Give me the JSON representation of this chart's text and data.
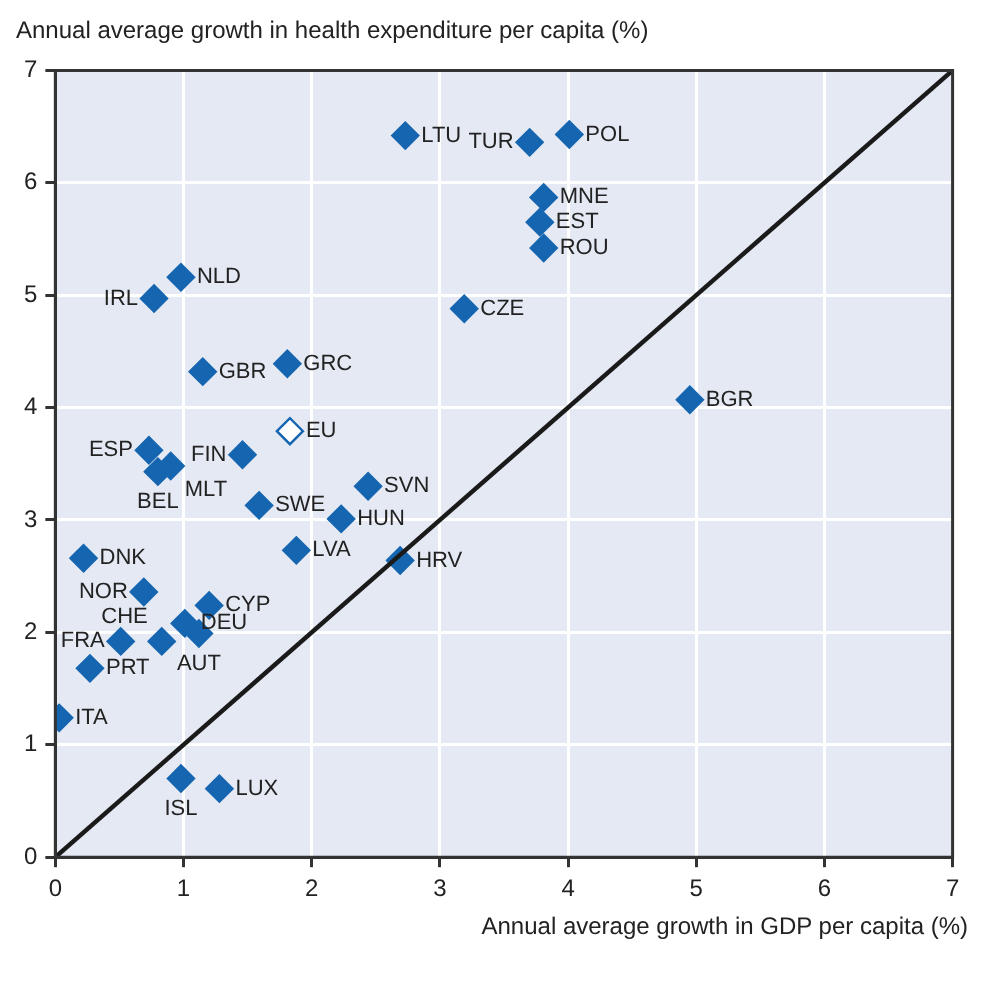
{
  "chart_data": {
    "type": "scatter",
    "ylabel": "Annual average growth in health expenditure per capita (%)",
    "xlabel": "Annual average growth in GDP per capita (%)",
    "xlim": [
      0,
      7
    ],
    "ylim": [
      0,
      7
    ],
    "xticks": [
      0,
      1,
      2,
      3,
      4,
      5,
      6,
      7
    ],
    "yticks": [
      0,
      1,
      2,
      3,
      4,
      5,
      6,
      7
    ],
    "grid": true,
    "legend": false,
    "marker": "diamond",
    "series": [
      {
        "type": "line",
        "color": "#1a1a1a",
        "marker": "none",
        "line_style": "solid",
        "x": [
          0,
          7
        ],
        "values": [
          0,
          7
        ]
      },
      {
        "color": "#1565b0",
        "x": [
          2.73,
          3.7,
          4.01,
          3.81,
          3.78,
          3.81,
          3.19,
          4.95,
          0.98,
          0.77,
          1.15,
          1.81,
          1.46,
          0.73,
          0.8,
          0.9,
          1.59,
          2.44,
          2.23,
          1.88,
          2.69,
          0.22,
          0.69,
          1.2,
          1.01,
          1.12,
          0.51,
          0.83,
          0.27,
          0.03,
          0.98,
          1.28
        ],
        "values": [
          6.42,
          6.36,
          6.43,
          5.87,
          5.65,
          5.42,
          4.88,
          4.07,
          5.16,
          4.97,
          4.32,
          4.39,
          3.58,
          3.62,
          3.43,
          3.48,
          3.13,
          3.3,
          3.01,
          2.73,
          2.64,
          2.66,
          2.36,
          2.24,
          2.08,
          1.99,
          1.92,
          1.92,
          1.68,
          1.24,
          0.7,
          0.61
        ]
      },
      {
        "color": "#ffffff",
        "x": [
          1.83
        ],
        "values": [
          3.79
        ]
      }
    ],
    "annotations": [
      {
        "text": "LTU",
        "x": 2.73,
        "y": 6.42
      },
      {
        "text": "TUR",
        "x": 3.7,
        "y": 6.36
      },
      {
        "text": "POL",
        "x": 4.01,
        "y": 6.43
      },
      {
        "text": "MNE",
        "x": 3.81,
        "y": 5.87
      },
      {
        "text": "EST",
        "x": 3.78,
        "y": 5.65
      },
      {
        "text": "ROU",
        "x": 3.81,
        "y": 5.42
      },
      {
        "text": "CZE",
        "x": 3.19,
        "y": 4.88
      },
      {
        "text": "BGR",
        "x": 4.95,
        "y": 4.07
      },
      {
        "text": "NLD",
        "x": 0.98,
        "y": 5.16
      },
      {
        "text": "IRL",
        "x": 0.77,
        "y": 4.97
      },
      {
        "text": "GBR",
        "x": 1.15,
        "y": 4.32
      },
      {
        "text": "GRC",
        "x": 1.81,
        "y": 4.39
      },
      {
        "text": "FIN",
        "x": 1.46,
        "y": 3.58
      },
      {
        "text": "ESP",
        "x": 0.73,
        "y": 3.62
      },
      {
        "text": "BEL",
        "x": 0.8,
        "y": 3.43
      },
      {
        "text": "MLT",
        "x": 0.9,
        "y": 3.48
      },
      {
        "text": "SWE",
        "x": 1.59,
        "y": 3.13
      },
      {
        "text": "SVN",
        "x": 2.44,
        "y": 3.3
      },
      {
        "text": "HUN",
        "x": 2.23,
        "y": 3.01
      },
      {
        "text": "LVA",
        "x": 1.88,
        "y": 2.73
      },
      {
        "text": "HRV",
        "x": 2.69,
        "y": 2.64
      },
      {
        "text": "DNK",
        "x": 0.22,
        "y": 2.66
      },
      {
        "text": "NOR",
        "x": 0.69,
        "y": 2.36
      },
      {
        "text": "CYP",
        "x": 1.2,
        "y": 2.24
      },
      {
        "text": "DEU",
        "x": 1.01,
        "y": 2.08
      },
      {
        "text": "AUT",
        "x": 1.12,
        "y": 1.99
      },
      {
        "text": "FRA",
        "x": 0.51,
        "y": 1.92
      },
      {
        "text": "CHE",
        "x": 0.83,
        "y": 1.92
      },
      {
        "text": "PRT",
        "x": 0.27,
        "y": 1.68
      },
      {
        "text": "ITA",
        "x": 0.03,
        "y": 1.24
      },
      {
        "text": "ISL",
        "x": 0.98,
        "y": 0.7
      },
      {
        "text": "LUX",
        "x": 1.28,
        "y": 0.61
      },
      {
        "text": "EU",
        "x": 1.83,
        "y": 3.79
      }
    ]
  }
}
